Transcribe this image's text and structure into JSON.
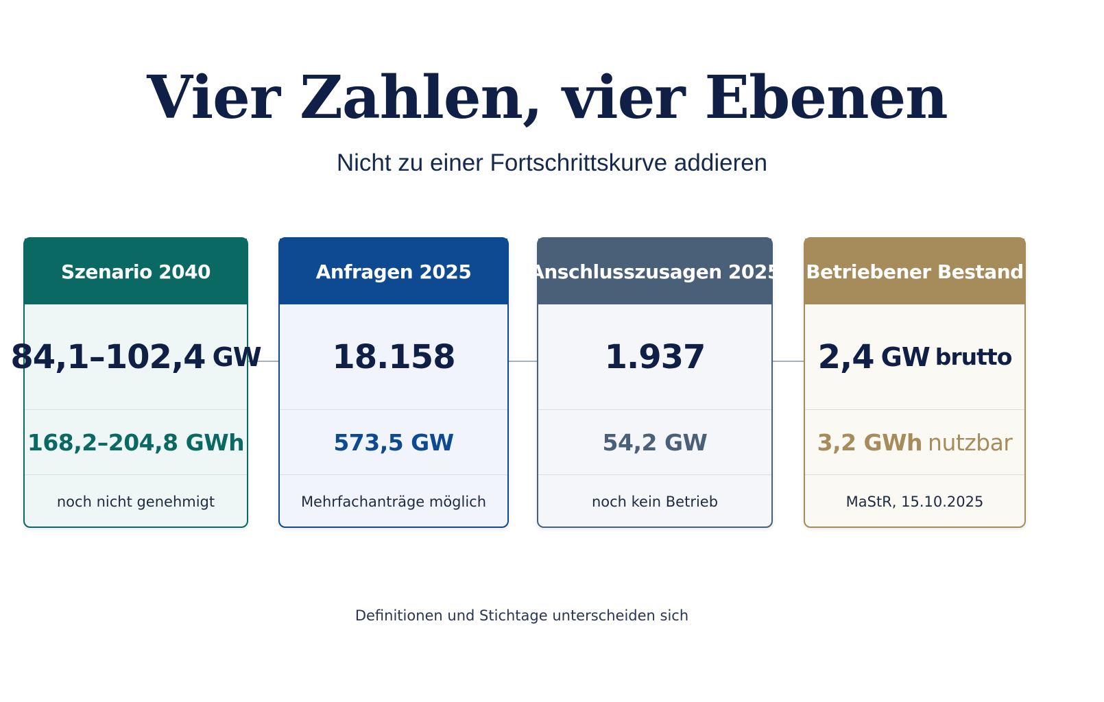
{
  "title": "Vier Zahlen, vier Ebenen",
  "subtitle": "Nicht zu einer Fortschrittskurve addieren",
  "cards": [
    {
      "header": "Szenario 2040",
      "main_value": "84,1–102,4",
      "main_unit": "GW",
      "main_suffix": "",
      "sub_value": "168,2–204,8 GWh",
      "sub_suffix": "",
      "note": "noch nicht genehmigt",
      "color": "#0a6a63",
      "body_bg": "#eef7f6"
    },
    {
      "header": "Anfragen 2025",
      "main_value": "18.158",
      "main_unit": "",
      "main_suffix": "",
      "sub_value": "573,5 GW",
      "sub_suffix": "",
      "note": "Mehrfachanträge möglich",
      "color": "#0d4a91",
      "body_bg": "#f1f5fb"
    },
    {
      "header": "Anschlusszusagen 2025",
      "main_value": "1.937",
      "main_unit": "",
      "main_suffix": "",
      "sub_value": "54,2 GW",
      "sub_suffix": "",
      "note": "noch kein Betrieb",
      "color": "#4a6079",
      "body_bg": "#f4f6f9"
    },
    {
      "header": "Betriebener Bestand",
      "main_value": "2,4",
      "main_unit": "GW",
      "main_suffix": "brutto",
      "sub_value": "3,2 GWh",
      "sub_suffix": "nutzbar",
      "note": "MaStR, 15.10.2025",
      "color": "#a68c5a",
      "body_bg": "#fbf9f4"
    }
  ],
  "footer": "Definitionen und Stichtage unterscheiden sich"
}
